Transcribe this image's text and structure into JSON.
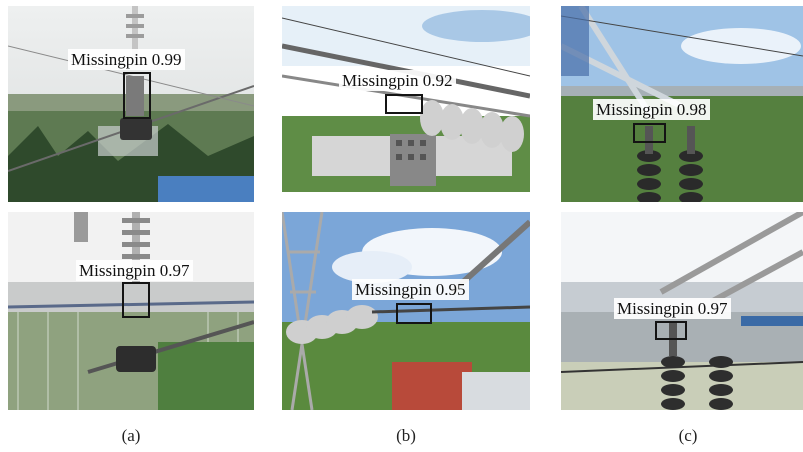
{
  "detections": [
    {
      "label": "Missingpin",
      "score": "0.99"
    },
    {
      "label": "Missingpin",
      "score": "0.97"
    },
    {
      "label": "Missingpin",
      "score": "0.92"
    },
    {
      "label": "Missingpin",
      "score": "0.95"
    },
    {
      "label": "Missingpin",
      "score": "0.98"
    },
    {
      "label": "Missingpin",
      "score": "0.97"
    }
  ],
  "captions": [
    "(a)",
    "(b)",
    "(c)"
  ]
}
